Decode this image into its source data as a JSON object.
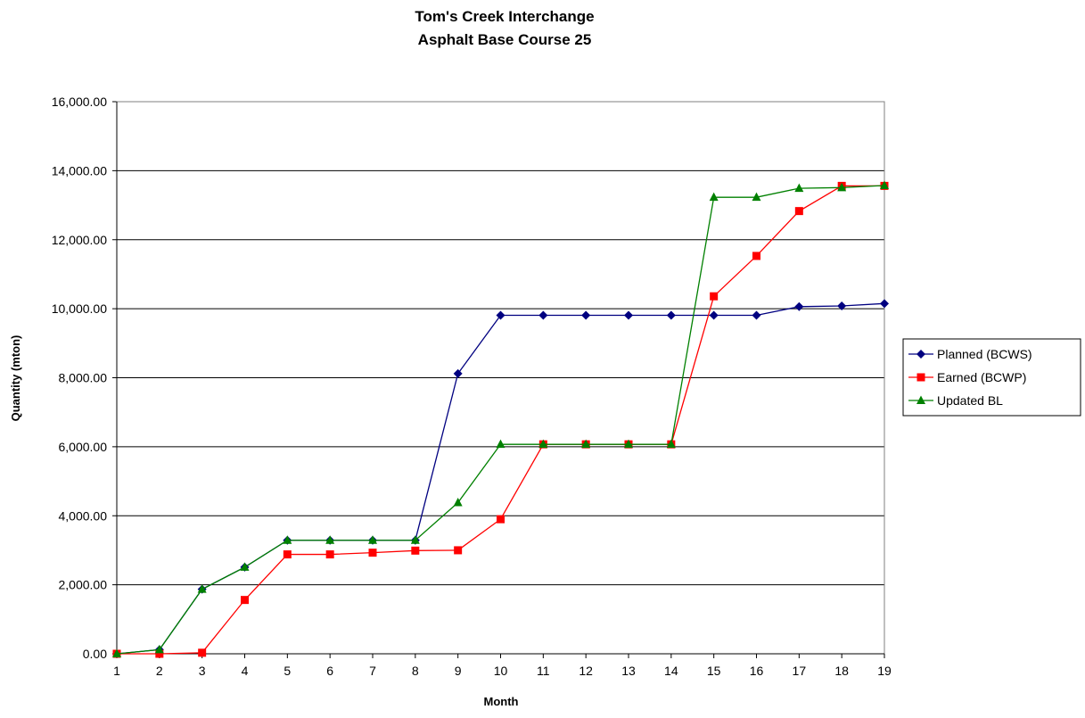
{
  "chart_data": {
    "type": "line",
    "title": "Tom's Creek Interchange",
    "subtitle": "Asphalt Base Course 25",
    "xlabel": "Month",
    "ylabel": "Quantity (mton)",
    "ylim": [
      0,
      16000
    ],
    "y_ticks": [
      "0.00",
      "2,000.00",
      "4,000.00",
      "6,000.00",
      "8,000.00",
      "10,000.00",
      "12,000.00",
      "14,000.00",
      "16,000.00"
    ],
    "categories": [
      "1",
      "2",
      "3",
      "4",
      "5",
      "6",
      "7",
      "8",
      "9",
      "10",
      "11",
      "12",
      "13",
      "14",
      "15",
      "16",
      "17",
      "18",
      "19"
    ],
    "grid": "horizontal",
    "legend_position": "right",
    "series": [
      {
        "name": "Planned (BCWS)",
        "color": "#000080",
        "marker": "diamond",
        "values": [
          0,
          120,
          1870,
          2510,
          3290,
          3290,
          3290,
          3290,
          8120,
          9810,
          9810,
          9810,
          9810,
          9810,
          9810,
          9810,
          10060,
          10080,
          10150
        ]
      },
      {
        "name": "Earned (BCWP)",
        "color": "#ff0000",
        "marker": "square",
        "values": [
          0,
          0,
          30,
          1560,
          2880,
          2880,
          2930,
          2990,
          3000,
          3900,
          6070,
          6070,
          6070,
          6070,
          10360,
          11530,
          12830,
          13560,
          13560
        ]
      },
      {
        "name": "Updated BL",
        "color": "#008000",
        "marker": "triangle",
        "values": [
          0,
          120,
          1870,
          2510,
          3290,
          3290,
          3290,
          3290,
          4380,
          6070,
          6070,
          6070,
          6070,
          6070,
          13230,
          13230,
          13490,
          13510,
          13570
        ]
      }
    ]
  }
}
